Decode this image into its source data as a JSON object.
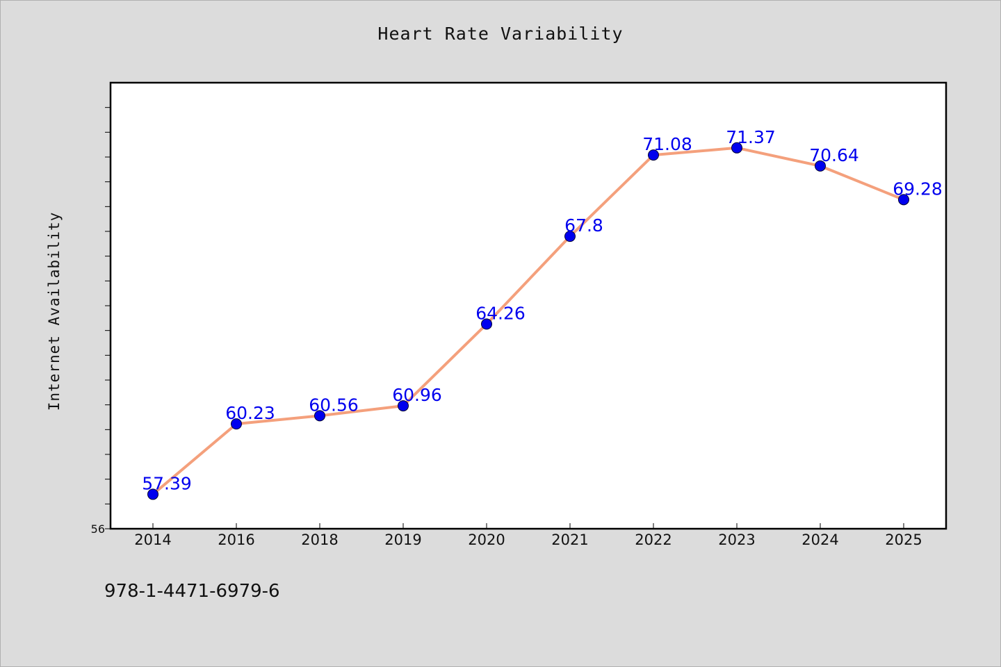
{
  "chart_data": {
    "type": "line",
    "title": "Heart Rate Variability",
    "xlabel": "",
    "ylabel": "Internet Availability",
    "categories": [
      "2014",
      "2016",
      "2018",
      "2019",
      "2020",
      "2021",
      "2022",
      "2023",
      "2024",
      "2025"
    ],
    "series": [
      {
        "values": [
          57.39,
          60.23,
          60.56,
          60.96,
          64.26,
          67.8,
          71.08,
          71.37,
          70.64,
          69.28
        ],
        "labels": [
          "57.39",
          "60.23",
          "60.56",
          "60.96",
          "64.26",
          "67.8",
          "71.08",
          "71.37",
          "70.64",
          "69.28"
        ],
        "line_color": "#f4a07c",
        "marker_color": "#0000ee",
        "label_color": "#0000ee"
      }
    ],
    "ylim": [
      56,
      74
    ],
    "y_tick_labels": [
      "56"
    ],
    "grid": false,
    "legend": "none"
  },
  "footer": {
    "isbn": "978-1-4471-6979-6"
  }
}
